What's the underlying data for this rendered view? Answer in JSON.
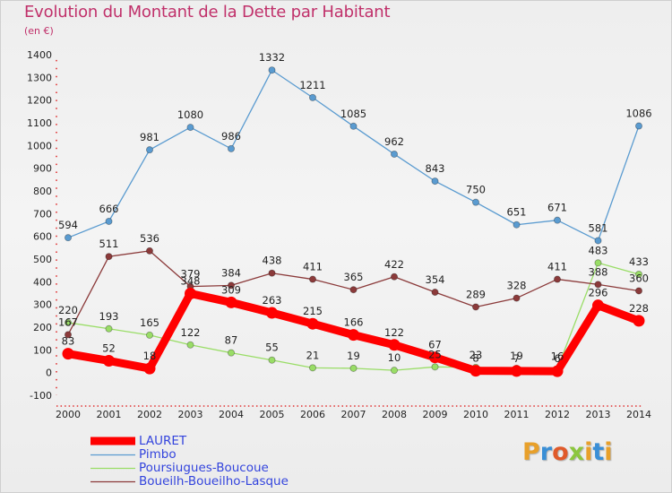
{
  "title": "Evolution du Montant de la Dette par Habitant",
  "subtitle": "(en €)",
  "logo": {
    "letters": [
      "P",
      "r",
      "o",
      "x",
      "i",
      "t",
      "i"
    ],
    "colors": [
      "#e8a02a",
      "#3a8fd6",
      "#e05a2a",
      "#8cc63e",
      "#e8a02a",
      "#3a8fd6",
      "#e8a02a"
    ]
  },
  "chart_data": {
    "type": "line",
    "categories": [
      "2000",
      "2001",
      "2002",
      "2003",
      "2004",
      "2005",
      "2006",
      "2007",
      "2008",
      "2009",
      "2010",
      "2011",
      "2012",
      "2013",
      "2014"
    ],
    "ylim": [
      -100,
      1400
    ],
    "yticks": [
      "-100",
      "0",
      "100",
      "200",
      "300",
      "400",
      "500",
      "600",
      "700",
      "800",
      "900",
      "1000",
      "1100",
      "1200",
      "1300",
      "1400"
    ],
    "grid": false,
    "legend_position": "bottom-left",
    "series": [
      {
        "name": "LAURET",
        "color": "#ff0000",
        "values": [
          83,
          52,
          18,
          348,
          309,
          263,
          215,
          166,
          122,
          67,
          8,
          7,
          6,
          296,
          228
        ],
        "labels": [
          "83",
          "52",
          "18",
          "348",
          "309",
          "263",
          "215",
          "166",
          "122",
          "67",
          "8",
          "7",
          "6",
          "296",
          "228"
        ]
      },
      {
        "name": "Pimbo",
        "color": "#5a9bd0",
        "values": [
          594,
          666,
          981,
          1080,
          986,
          1332,
          1211,
          1085,
          962,
          843,
          750,
          651,
          671,
          581,
          1086
        ],
        "labels": [
          "594",
          "666",
          "981",
          "1080",
          "986",
          "1332",
          "1211",
          "1085",
          "962",
          "843",
          "750",
          "651",
          "671",
          "581",
          "1086"
        ]
      },
      {
        "name": "Poursiugues-Boucoue",
        "color": "#99dd66",
        "values": [
          220,
          193,
          165,
          122,
          87,
          55,
          21,
          19,
          10,
          25,
          23,
          19,
          16,
          483,
          433
        ],
        "labels": [
          "220",
          "193",
          "165",
          "122",
          "87",
          "55",
          "21",
          "19",
          "10",
          "25",
          "23",
          "19",
          "16",
          "483",
          "433"
        ]
      },
      {
        "name": "Boueilh-Boueilho-Lasque",
        "color": "#8b3a3a",
        "values": [
          167,
          511,
          536,
          379,
          384,
          438,
          411,
          365,
          422,
          354,
          289,
          328,
          411,
          388,
          360
        ],
        "labels": [
          "167",
          "511",
          "536",
          "379",
          "384",
          "438",
          "411",
          "365",
          "422",
          "354",
          "289",
          "328",
          "411",
          "388",
          "360"
        ]
      }
    ]
  }
}
